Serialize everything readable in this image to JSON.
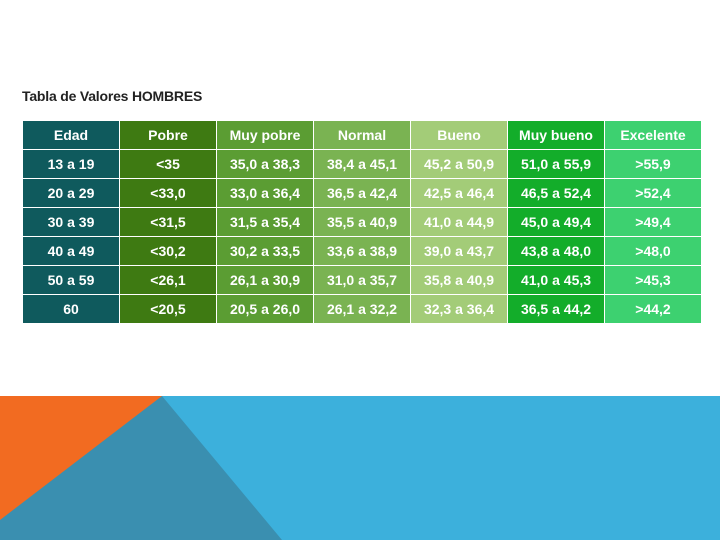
{
  "title": "Tabla de Valores HOMBRES",
  "table": {
    "headers": [
      "Edad",
      "Pobre",
      "Muy pobre",
      "Normal",
      "Bueno",
      "Muy bueno",
      "Excelente"
    ],
    "rows": [
      [
        "13 a 19",
        "<35",
        "35,0 a 38,3",
        "38,4 a 45,1",
        "45,2 a 50,9",
        "51,0 a 55,9",
        ">55,9"
      ],
      [
        "20 a 29",
        "<33,0",
        "33,0 a 36,4",
        "36,5 a 42,4",
        "42,5 a 46,4",
        "46,5 a 52,4",
        ">52,4"
      ],
      [
        "30 a 39",
        "<31,5",
        "31,5 a 35,4",
        "35,5 a 40,9",
        "41,0 a 44,9",
        "45,0 a 49,4",
        ">49,4"
      ],
      [
        "40 a 49",
        "<30,2",
        "30,2 a 33,5",
        "33,6 a 38,9",
        "39,0 a 43,7",
        "43,8 a 48,0",
        ">48,0"
      ],
      [
        "50 a 59",
        "<26,1",
        "26,1 a 30,9",
        "31,0 a 35,7",
        "35,8 a 40,9",
        "41,0 a 45,3",
        ">45,3"
      ],
      [
        "60",
        "<20,5",
        "20,5 a 26,0",
        "26,1 a 32,2",
        "32,3 a 36,4",
        "36,5 a 44,2",
        ">44,2"
      ]
    ]
  },
  "colors": {
    "edad": "#0f5a5d",
    "pobre": "#3e7a12",
    "muy_pobre": "#5b9d33",
    "normal": "#7ab352",
    "bueno": "#a3cc78",
    "muy_bueno": "#13ad2a",
    "excelente": "#3dd170",
    "footer_blue": "#3cb0dc",
    "footer_dark_blue": "#3a8fb0",
    "footer_orange": "#f26b21"
  }
}
